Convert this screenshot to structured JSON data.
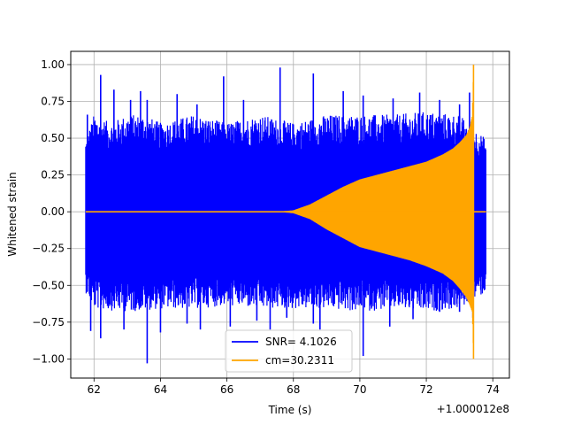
{
  "chart_data": {
    "type": "line",
    "title": "",
    "xlabel": "Time (s)",
    "ylabel": "Whitened strain",
    "offset_text": "+1.000012e8",
    "xlim": [
      61.3,
      74.5
    ],
    "ylim": [
      -1.13,
      1.09
    ],
    "x_ticks": [
      62,
      64,
      66,
      68,
      70,
      72,
      74
    ],
    "x_tick_labels": [
      "62",
      "64",
      "66",
      "68",
      "70",
      "72",
      "74"
    ],
    "y_ticks": [
      -1.0,
      -0.75,
      -0.5,
      -0.25,
      0.0,
      0.25,
      0.5,
      0.75,
      1.0
    ],
    "y_tick_labels": [
      "−1.00",
      "−0.75",
      "−0.50",
      "−0.25",
      "0.00",
      "0.25",
      "0.50",
      "0.75",
      "1.00"
    ],
    "grid": true,
    "legend_position": "lower-center",
    "series": [
      {
        "name": "SNR= 4.1026",
        "color": "#0000ff",
        "x_range": [
          61.75,
          73.8
        ],
        "envelope_upper": [
          [
            61.75,
            0.45
          ],
          [
            62.0,
            0.6
          ],
          [
            62.5,
            0.55
          ],
          [
            63.0,
            0.6
          ],
          [
            63.5,
            0.6
          ],
          [
            64.0,
            0.55
          ],
          [
            65.0,
            0.6
          ],
          [
            66.0,
            0.55
          ],
          [
            67.0,
            0.6
          ],
          [
            68.0,
            0.55
          ],
          [
            69.0,
            0.6
          ],
          [
            70.0,
            0.6
          ],
          [
            71.0,
            0.6
          ],
          [
            72.0,
            0.62
          ],
          [
            73.0,
            0.6
          ],
          [
            73.8,
            0.45
          ]
        ],
        "envelope_lower": [
          [
            61.75,
            -0.5
          ],
          [
            62.0,
            -0.6
          ],
          [
            63.0,
            -0.62
          ],
          [
            64.0,
            -0.6
          ],
          [
            65.0,
            -0.6
          ],
          [
            66.0,
            -0.58
          ],
          [
            67.0,
            -0.6
          ],
          [
            68.0,
            -0.6
          ],
          [
            69.0,
            -0.6
          ],
          [
            70.0,
            -0.62
          ],
          [
            71.0,
            -0.6
          ],
          [
            72.0,
            -0.62
          ],
          [
            73.0,
            -0.6
          ],
          [
            73.8,
            -0.5
          ]
        ],
        "peaks_upper": [
          [
            61.8,
            0.66
          ],
          [
            62.2,
            0.93
          ],
          [
            62.6,
            0.83
          ],
          [
            63.1,
            0.76
          ],
          [
            63.4,
            0.82
          ],
          [
            63.6,
            0.76
          ],
          [
            64.5,
            0.8
          ],
          [
            65.1,
            0.73
          ],
          [
            65.9,
            0.92
          ],
          [
            66.5,
            0.76
          ],
          [
            67.6,
            0.98
          ],
          [
            68.6,
            0.94
          ],
          [
            69.5,
            0.82
          ],
          [
            70.1,
            0.79
          ],
          [
            71.0,
            0.77
          ],
          [
            71.8,
            0.81
          ],
          [
            72.4,
            0.76
          ],
          [
            73.0,
            0.73
          ],
          [
            73.3,
            0.81
          ]
        ],
        "peaks_lower": [
          [
            61.9,
            -0.81
          ],
          [
            62.2,
            -0.86
          ],
          [
            62.9,
            -0.8
          ],
          [
            63.6,
            -1.03
          ],
          [
            64.0,
            -0.82
          ],
          [
            64.8,
            -0.76
          ],
          [
            65.2,
            -0.8
          ],
          [
            66.1,
            -0.78
          ],
          [
            66.9,
            -0.74
          ],
          [
            67.3,
            -0.8
          ],
          [
            67.8,
            -0.72
          ],
          [
            68.6,
            -0.76
          ],
          [
            68.8,
            -0.8
          ],
          [
            70.1,
            -0.98
          ],
          [
            70.9,
            -0.78
          ],
          [
            71.6,
            -0.73
          ],
          [
            72.4,
            -0.68
          ],
          [
            73.0,
            -0.68
          ],
          [
            73.4,
            -0.72
          ]
        ]
      },
      {
        "name": "cm=30.2311",
        "color": "#ffa500",
        "x_range": [
          61.75,
          73.8
        ],
        "envelope_upper": [
          [
            61.75,
            0.0
          ],
          [
            67.5,
            0.0
          ],
          [
            68.0,
            0.01
          ],
          [
            68.5,
            0.05
          ],
          [
            69.0,
            0.11
          ],
          [
            69.5,
            0.17
          ],
          [
            70.0,
            0.22
          ],
          [
            70.5,
            0.25
          ],
          [
            71.0,
            0.28
          ],
          [
            71.5,
            0.31
          ],
          [
            72.0,
            0.34
          ],
          [
            72.5,
            0.39
          ],
          [
            72.8,
            0.43
          ],
          [
            73.0,
            0.47
          ],
          [
            73.2,
            0.52
          ],
          [
            73.3,
            0.57
          ],
          [
            73.38,
            0.65
          ],
          [
            73.42,
            1.0
          ]
        ],
        "envelope_lower": [
          [
            61.75,
            0.0
          ],
          [
            67.5,
            0.0
          ],
          [
            68.0,
            -0.01
          ],
          [
            68.5,
            -0.05
          ],
          [
            69.0,
            -0.12
          ],
          [
            69.5,
            -0.18
          ],
          [
            70.0,
            -0.24
          ],
          [
            70.5,
            -0.27
          ],
          [
            71.0,
            -0.3
          ],
          [
            71.5,
            -0.33
          ],
          [
            72.0,
            -0.37
          ],
          [
            72.5,
            -0.42
          ],
          [
            72.8,
            -0.47
          ],
          [
            73.0,
            -0.52
          ],
          [
            73.2,
            -0.58
          ],
          [
            73.3,
            -0.63
          ],
          [
            73.38,
            -0.68
          ],
          [
            73.42,
            -1.0
          ]
        ],
        "merger_time": 73.42,
        "post_merger_value": 0.0
      }
    ]
  }
}
